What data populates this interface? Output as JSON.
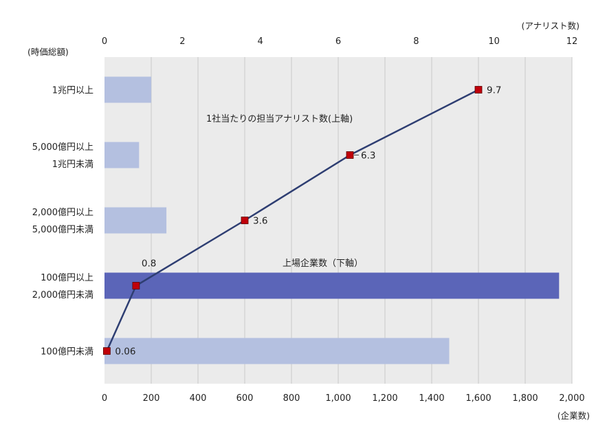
{
  "chart_data": {
    "type": "bar+line",
    "categories": [
      "1兆円以上",
      "5,000億円以上 1兆円未満",
      "2,000億円以上 5,000億円未満",
      "100億円以上 2,000億円未満",
      "100億円未満"
    ],
    "category_lines": [
      [
        "1兆円以上"
      ],
      [
        "5,000億円以上",
        "1兆円未満"
      ],
      [
        "2,000億円以上",
        "5,000億円未満"
      ],
      [
        "100億円以上",
        "2,000億円未満"
      ],
      [
        "100億円未満"
      ]
    ],
    "bars": {
      "label": "上場企業数（下軸）",
      "values": [
        200,
        148,
        265,
        1945,
        1475
      ],
      "colors": [
        "#b4c0e0",
        "#b4c0e0",
        "#b4c0e0",
        "#5b65b8",
        "#b4c0e0"
      ]
    },
    "line": {
      "label": "1社当たりの担当アナリスト数(上軸)",
      "values": [
        9.7,
        6.3,
        3.6,
        0.8,
        0.06
      ],
      "value_labels": [
        "9.7",
        "6.3",
        "3.6",
        "0.8",
        "0.06"
      ],
      "x_lower_units": [
        1600,
        1050,
        600,
        135,
        10
      ],
      "line_color": "#2e3e72",
      "marker_color": "#c0000a"
    },
    "bottom_axis": {
      "unit_label": "(企業数)",
      "range": [
        0,
        2000
      ],
      "ticks": [
        "0",
        "200",
        "400",
        "600",
        "800",
        "1,000",
        "1,200",
        "1,400",
        "1,600",
        "1,800",
        "2,000"
      ]
    },
    "top_axis": {
      "unit_label": "(アナリスト数)",
      "range": [
        0,
        12
      ],
      "ticks": [
        "0",
        "2",
        "4",
        "6",
        "8",
        "10",
        "12"
      ]
    },
    "y_axis_label": "(時価総額)",
    "grid": true,
    "plot_background": "#ebebeb"
  }
}
